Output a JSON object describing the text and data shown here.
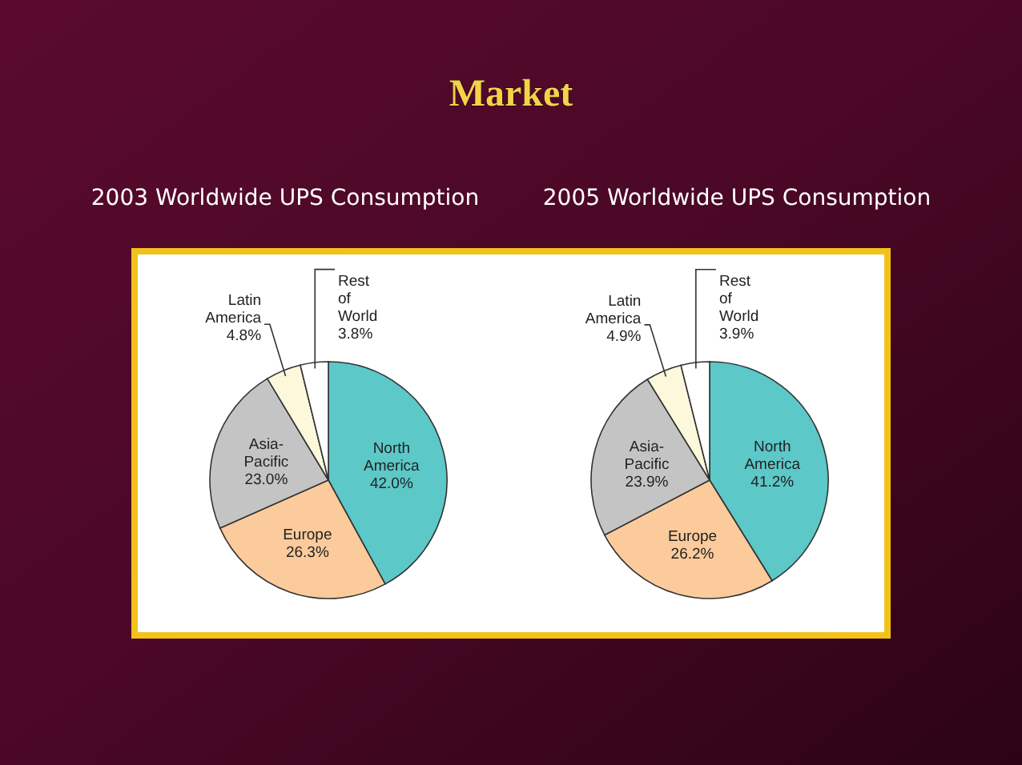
{
  "chart_data": [
    {
      "type": "pie",
      "title": "2003 Worldwide UPS Consumption",
      "annotations": [
        "Market"
      ],
      "categories": [
        "North America",
        "Europe",
        "Asia-Pacific",
        "Latin America",
        "Rest of World"
      ],
      "values": [
        42.0,
        26.3,
        23.0,
        4.8,
        3.8
      ],
      "value_labels": [
        "42.0%",
        "26.3%",
        "23.0%",
        "4.8%",
        "3.8%"
      ],
      "colors": [
        "#5cc8c8",
        "#fbcb9c",
        "#c4c4c4",
        "#fdf8dc",
        "#ffffff"
      ]
    },
    {
      "type": "pie",
      "title": "2005 Worldwide UPS Consumption",
      "categories": [
        "North America",
        "Europe",
        "Asia-Pacific",
        "Latin America",
        "Rest of World"
      ],
      "values": [
        41.2,
        26.2,
        23.9,
        4.9,
        3.9
      ],
      "value_labels": [
        "41.2%",
        "26.2%",
        "23.9%",
        "4.9%",
        "3.9%"
      ],
      "colors": [
        "#5cc8c8",
        "#fbcb9c",
        "#c4c4c4",
        "#fdf8dc",
        "#ffffff"
      ]
    }
  ]
}
